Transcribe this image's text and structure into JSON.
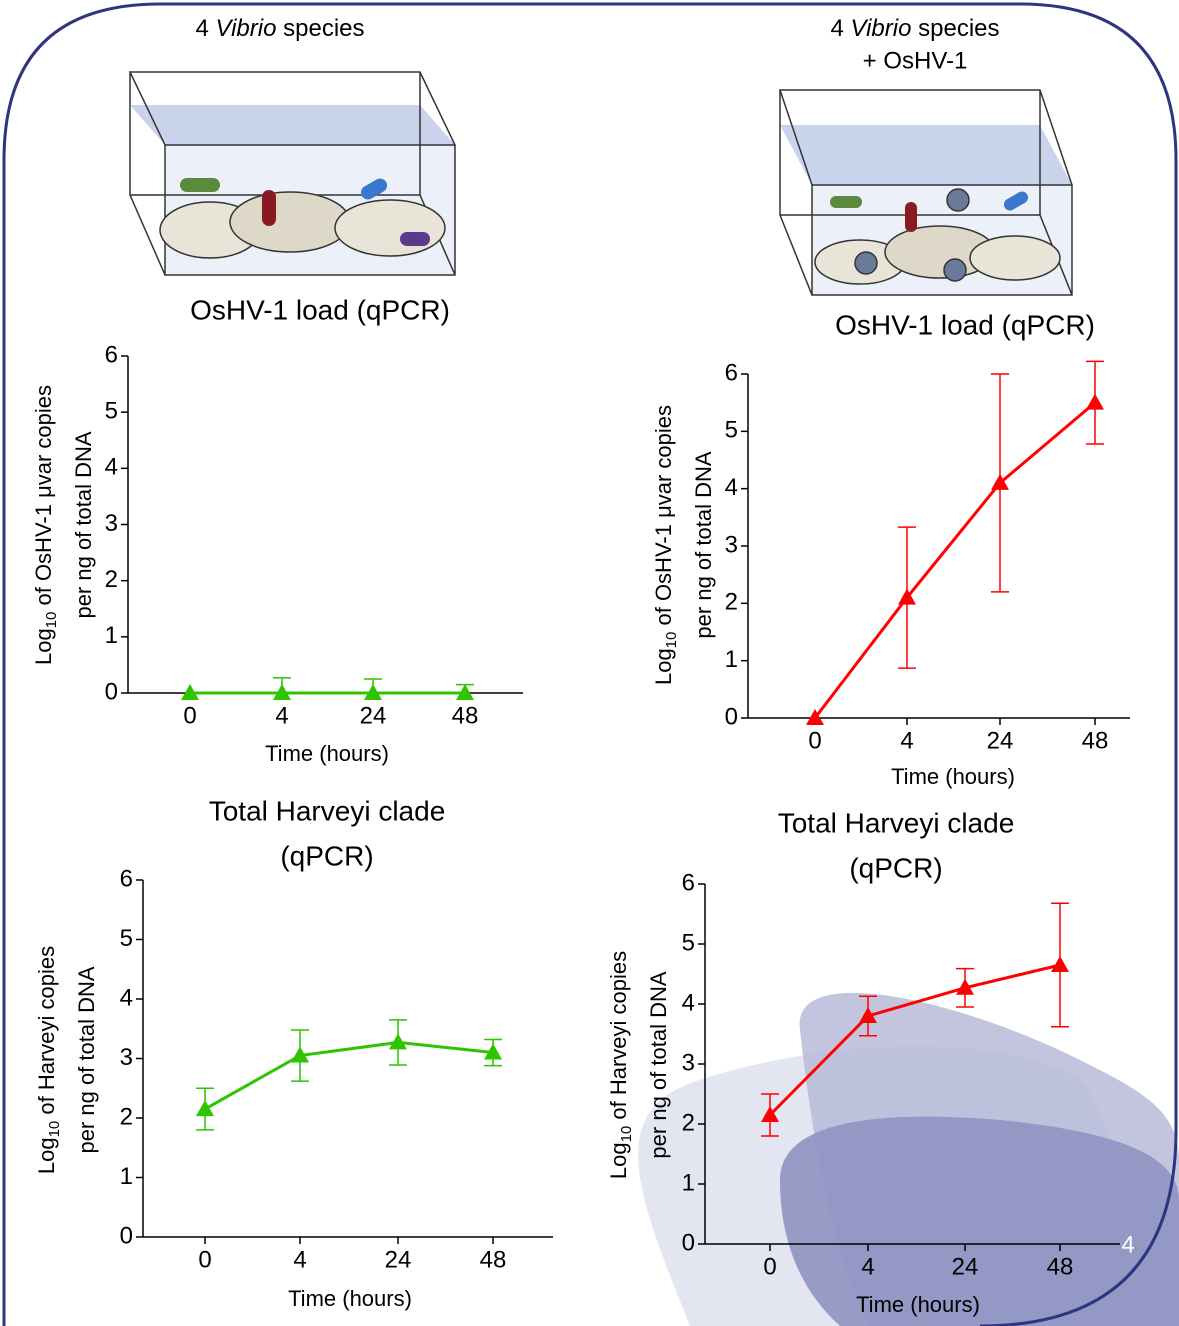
{
  "panels": [
    {
      "caption": [
        "4 ",
        "Vibrio",
        " species"
      ]
    },
    {
      "caption": [
        "4 ",
        "Vibrio",
        " species",
        "+ OsHV-1"
      ]
    }
  ],
  "page_number": "4",
  "chart_data": [
    {
      "type": "line",
      "title": [
        "OsHV-1 load (qPCR)"
      ],
      "xlabel": "Time (hours)",
      "ylabel": {
        "parts": [
          "Log",
          "10",
          " of OsHV-1 μvar copies"
        ],
        "line2": "per ng of total DNA"
      },
      "categories": [
        "0",
        "4",
        "24",
        "48"
      ],
      "values": [
        0,
        0,
        0,
        0
      ],
      "errors": [
        0,
        0.27,
        0.25,
        0.15
      ],
      "error_direction": "up",
      "color": "#2ec400",
      "ylim": [
        0,
        6
      ],
      "yticks": [
        0,
        1,
        2,
        3,
        4,
        5,
        6
      ]
    },
    {
      "type": "line",
      "title": [
        "OsHV-1 load (qPCR)"
      ],
      "xlabel": "Time (hours)",
      "ylabel": {
        "parts": [
          "Log",
          "10",
          " of OsHV-1 μvar copies"
        ],
        "line2": "per ng of total DNA"
      },
      "categories": [
        "0",
        "4",
        "24",
        "48"
      ],
      "values": [
        0,
        2.1,
        4.1,
        5.5
      ],
      "errors": [
        0,
        1.23,
        1.9,
        0.72
      ],
      "color": "#ff0000",
      "ylim": [
        0,
        6
      ],
      "yticks": [
        0,
        1,
        2,
        3,
        4,
        5,
        6
      ]
    },
    {
      "type": "line",
      "title": [
        "Total Harveyi clade",
        "(qPCR)"
      ],
      "xlabel": "Time (hours)",
      "ylabel": {
        "parts": [
          "Log",
          "10",
          " of Harveyi copies"
        ],
        "line2": "per ng of total DNA"
      },
      "categories": [
        "0",
        "4",
        "24",
        "48"
      ],
      "values": [
        2.15,
        3.05,
        3.27,
        3.1
      ],
      "errors": [
        0.35,
        0.43,
        0.38,
        0.22
      ],
      "color": "#2ec400",
      "ylim": [
        0,
        6
      ],
      "yticks": [
        0,
        1,
        2,
        3,
        4,
        5,
        6
      ]
    },
    {
      "type": "line",
      "title": [
        "Total Harveyi clade",
        "(qPCR)"
      ],
      "xlabel": "Time (hours)",
      "ylabel": {
        "parts": [
          "Log",
          "10",
          " of Harveyi copies"
        ],
        "line2": "per ng of total DNA"
      },
      "categories": [
        "0",
        "4",
        "24",
        "48"
      ],
      "values": [
        2.15,
        3.8,
        4.27,
        4.65
      ],
      "errors": [
        0.35,
        0.33,
        0.32,
        1.03
      ],
      "color": "#ff0000",
      "ylim": [
        0,
        6
      ],
      "yticks": [
        0,
        1,
        2,
        3,
        4,
        5,
        6
      ]
    }
  ]
}
